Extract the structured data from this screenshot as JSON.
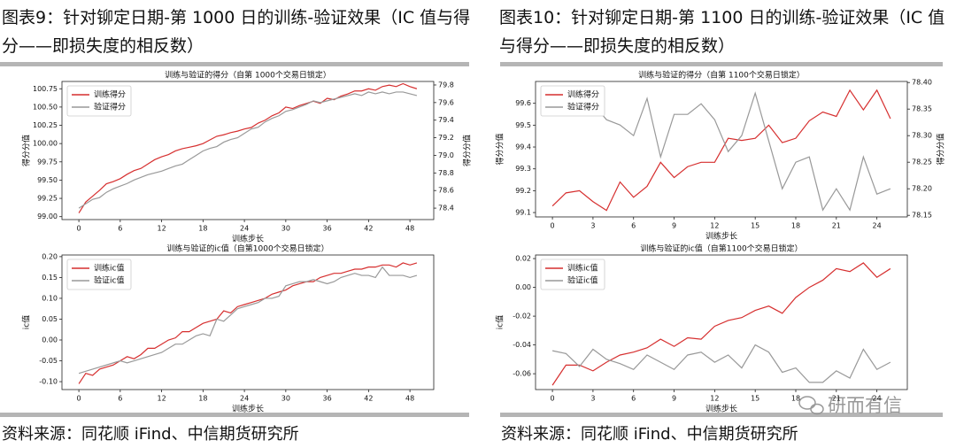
{
  "panels": [
    {
      "title": "图表9：针对铆定日期-第 1000 日的训练-验证效果（IC 值与得分——即损失度的相反数）",
      "source": "资料来源：同花顺 iFind、中信期货研究所"
    },
    {
      "title": "图表10：针对铆定日期-第 1100 日的训练-验证效果（IC 值与得分——即损失度的相反数）",
      "source": "资料来源：同花顺 iFind、中信期货研究所"
    }
  ],
  "watermark": "研而有信",
  "chart_data": [
    {
      "type": "line",
      "title": "训练与验证的得分（自第 1000个交易日锁定）",
      "xlabel": "训练步长",
      "ylabel": "得分分值",
      "y2label": "得分分值",
      "legend": "upper left",
      "x": [
        0,
        1,
        2,
        3,
        4,
        5,
        6,
        7,
        8,
        9,
        10,
        11,
        12,
        13,
        14,
        15,
        16,
        17,
        18,
        19,
        20,
        21,
        22,
        23,
        24,
        25,
        26,
        27,
        28,
        29,
        30,
        31,
        32,
        33,
        34,
        35,
        36,
        37,
        38,
        39,
        40,
        41,
        42,
        43,
        44,
        45,
        46,
        47,
        48,
        49
      ],
      "xlim": [
        -2.45,
        51.45
      ],
      "xticks": [
        0,
        6,
        12,
        18,
        24,
        30,
        36,
        42,
        48
      ],
      "ylim": [
        98.96,
        100.85
      ],
      "yticks": [
        {
          "value": 99,
          "label": "99.00"
        },
        99.25,
        {
          "value": 99.5,
          "label": "99.50"
        },
        99.75,
        {
          "value": 100,
          "label": "100.00"
        },
        100.25,
        {
          "value": 100.5,
          "label": "100.50"
        },
        100.75
      ],
      "y2lim": [
        78.27,
        79.84
      ],
      "y2ticks": [
        78.4,
        78.6,
        78.8,
        {
          "value": 79,
          "label": "79.0"
        },
        79.2,
        79.4,
        79.6,
        79.8
      ],
      "series": [
        {
          "name": "训练得分",
          "color": "#d62f2f",
          "values": [
            99.05,
            99.2,
            99.28,
            99.36,
            99.45,
            99.48,
            99.52,
            99.58,
            99.63,
            99.66,
            99.72,
            99.78,
            99.82,
            99.85,
            99.9,
            99.93,
            99.95,
            99.97,
            100.0,
            100.05,
            100.1,
            100.12,
            100.15,
            100.17,
            100.2,
            100.22,
            100.28,
            100.32,
            100.38,
            100.42,
            100.5,
            100.48,
            100.52,
            100.55,
            100.58,
            100.55,
            100.62,
            100.6,
            100.65,
            100.68,
            100.72,
            100.72,
            100.75,
            100.73,
            100.78,
            100.8,
            100.78,
            100.82,
            100.78,
            100.75
          ]
        },
        {
          "name": "验证得分",
          "color": "#999999",
          "axis": "y2",
          "values": [
            78.4,
            78.45,
            78.5,
            78.52,
            78.58,
            78.62,
            78.65,
            78.68,
            78.72,
            78.75,
            78.78,
            78.8,
            78.82,
            78.85,
            78.88,
            78.9,
            78.95,
            79.0,
            79.05,
            79.08,
            79.1,
            79.15,
            79.18,
            79.2,
            79.25,
            79.3,
            79.32,
            79.38,
            79.42,
            79.45,
            79.5,
            79.52,
            79.55,
            79.58,
            79.62,
            79.6,
            79.62,
            79.64,
            79.66,
            79.68,
            79.7,
            79.68,
            79.72,
            79.7,
            79.72,
            79.7,
            79.72,
            79.72,
            79.7,
            79.68
          ]
        }
      ]
    },
    {
      "type": "line",
      "title": "训练与验证的ic值（自第1000个交易日锁定）",
      "xlabel": "训练步长",
      "ylabel": "ic值",
      "legend": "upper left",
      "x": [
        0,
        1,
        2,
        3,
        4,
        5,
        6,
        7,
        8,
        9,
        10,
        11,
        12,
        13,
        14,
        15,
        16,
        17,
        18,
        19,
        20,
        21,
        22,
        23,
        24,
        25,
        26,
        27,
        28,
        29,
        30,
        31,
        32,
        33,
        34,
        35,
        36,
        37,
        38,
        39,
        40,
        41,
        42,
        43,
        44,
        45,
        46,
        47,
        48,
        49
      ],
      "xlim": [
        -2.45,
        51.45
      ],
      "xticks": [
        0,
        6,
        12,
        18,
        24,
        30,
        36,
        42,
        48
      ],
      "ylim": [
        -0.119,
        0.204
      ],
      "yticks": [
        {
          "value": -0.1,
          "label": "-0.10"
        },
        -0.05,
        {
          "value": 0,
          "label": "0.00"
        },
        0.05,
        {
          "value": 0.1,
          "label": "0.10"
        },
        0.15,
        {
          "value": 0.2,
          "label": "0.20"
        }
      ],
      "series": [
        {
          "name": "训练ic值",
          "color": "#d62f2f",
          "values": [
            -0.105,
            -0.08,
            -0.085,
            -0.07,
            -0.065,
            -0.06,
            -0.05,
            -0.04,
            -0.045,
            -0.035,
            -0.02,
            -0.02,
            -0.01,
            0.0,
            0.005,
            0.02,
            0.02,
            0.03,
            0.04,
            0.045,
            0.05,
            0.07,
            0.065,
            0.08,
            0.085,
            0.09,
            0.095,
            0.1,
            0.11,
            0.115,
            0.12,
            0.13,
            0.135,
            0.14,
            0.14,
            0.15,
            0.155,
            0.16,
            0.16,
            0.165,
            0.17,
            0.17,
            0.175,
            0.175,
            0.18,
            0.18,
            0.175,
            0.185,
            0.18,
            0.185
          ]
        },
        {
          "name": "验证ic值",
          "color": "#999999",
          "values": [
            -0.08,
            -0.075,
            -0.07,
            -0.065,
            -0.06,
            -0.055,
            -0.05,
            -0.055,
            -0.05,
            -0.045,
            -0.04,
            -0.035,
            -0.03,
            -0.02,
            -0.01,
            -0.01,
            0.0,
            0.01,
            0.015,
            0.01,
            0.05,
            0.045,
            0.06,
            0.075,
            0.08,
            0.085,
            0.09,
            0.1,
            0.1,
            0.105,
            0.13,
            0.135,
            0.14,
            0.14,
            0.145,
            0.14,
            0.135,
            0.14,
            0.15,
            0.155,
            0.16,
            0.155,
            0.155,
            0.15,
            0.175,
            0.155,
            0.155,
            0.155,
            0.15,
            0.155
          ]
        }
      ]
    },
    {
      "type": "line",
      "title": "训练与验证的得分（自第 1100个交易日锁定）",
      "xlabel": "训练步长",
      "ylabel": "得分分值",
      "y2label": "得分分值",
      "legend": "upper left",
      "x": [
        0,
        1,
        2,
        3,
        4,
        5,
        6,
        7,
        8,
        9,
        10,
        11,
        12,
        13,
        14,
        15,
        16,
        17,
        18,
        19,
        20,
        21,
        22,
        23,
        24,
        25
      ],
      "xlim": [
        -1.25,
        26.25
      ],
      "xticks": [
        0,
        3,
        6,
        9,
        12,
        15,
        18,
        21,
        24
      ],
      "ylim": [
        99.08,
        99.7
      ],
      "yticks": [
        99.1,
        99.2,
        99.3,
        99.4,
        99.5,
        99.6
      ],
      "y2lim": [
        78.147,
        78.402
      ],
      "y2ticks": [
        78.15,
        {
          "value": 78.2,
          "label": "78.20"
        },
        78.25,
        {
          "value": 78.3,
          "label": "78.30"
        },
        78.35,
        {
          "value": 78.4,
          "label": "78.40"
        }
      ],
      "series": [
        {
          "name": "训练得分",
          "color": "#d62f2f",
          "values": [
            99.13,
            99.19,
            99.2,
            99.15,
            99.11,
            99.24,
            99.17,
            99.22,
            99.33,
            99.26,
            99.31,
            99.33,
            99.33,
            99.44,
            99.43,
            99.44,
            99.5,
            99.42,
            99.44,
            99.52,
            99.56,
            99.54,
            99.66,
            99.57,
            99.66,
            99.53
          ]
        },
        {
          "name": "验证得分",
          "color": "#999999",
          "axis": "y2",
          "values": [
            78.38,
            78.37,
            78.38,
            78.36,
            78.33,
            78.32,
            78.3,
            78.37,
            78.26,
            78.34,
            78.34,
            78.36,
            78.33,
            78.27,
            78.3,
            78.38,
            78.29,
            78.2,
            78.25,
            78.26,
            78.16,
            78.2,
            78.16,
            78.26,
            78.19,
            78.2
          ]
        }
      ]
    },
    {
      "type": "line",
      "title": "训练与验证的ic值（自第1100个交易日锁定）",
      "xlabel": "训练步长",
      "ylabel": "ic值",
      "legend": "upper left",
      "x": [
        0,
        1,
        2,
        3,
        4,
        5,
        6,
        7,
        8,
        9,
        10,
        11,
        12,
        13,
        14,
        15,
        16,
        17,
        18,
        19,
        20,
        21,
        22,
        23,
        24,
        25
      ],
      "xlim": [
        -1.25,
        26.25
      ],
      "xticks": [
        0,
        3,
        6,
        9,
        12,
        15,
        18,
        21,
        24
      ],
      "ylim": [
        -0.071,
        0.0225
      ],
      "yticks": [
        -0.06,
        -0.04,
        -0.02,
        {
          "value": 0,
          "label": "0.00"
        },
        0.02
      ],
      "series": [
        {
          "name": "训练ic值",
          "color": "#d62f2f",
          "values": [
            -0.068,
            -0.054,
            -0.054,
            -0.058,
            -0.052,
            -0.047,
            -0.045,
            -0.042,
            -0.036,
            -0.041,
            -0.035,
            -0.036,
            -0.027,
            -0.023,
            -0.021,
            -0.016,
            -0.013,
            -0.018,
            -0.007,
            0.0,
            0.005,
            0.013,
            0.011,
            0.017,
            0.007,
            0.013
          ]
        },
        {
          "name": "验证ic值",
          "color": "#999999",
          "values": [
            -0.044,
            -0.046,
            -0.055,
            -0.043,
            -0.05,
            -0.053,
            -0.057,
            -0.047,
            -0.052,
            -0.057,
            -0.047,
            -0.045,
            -0.052,
            -0.047,
            -0.056,
            -0.04,
            -0.045,
            -0.059,
            -0.056,
            -0.066,
            -0.066,
            -0.058,
            -0.063,
            -0.043,
            -0.057,
            -0.052
          ]
        }
      ]
    }
  ]
}
